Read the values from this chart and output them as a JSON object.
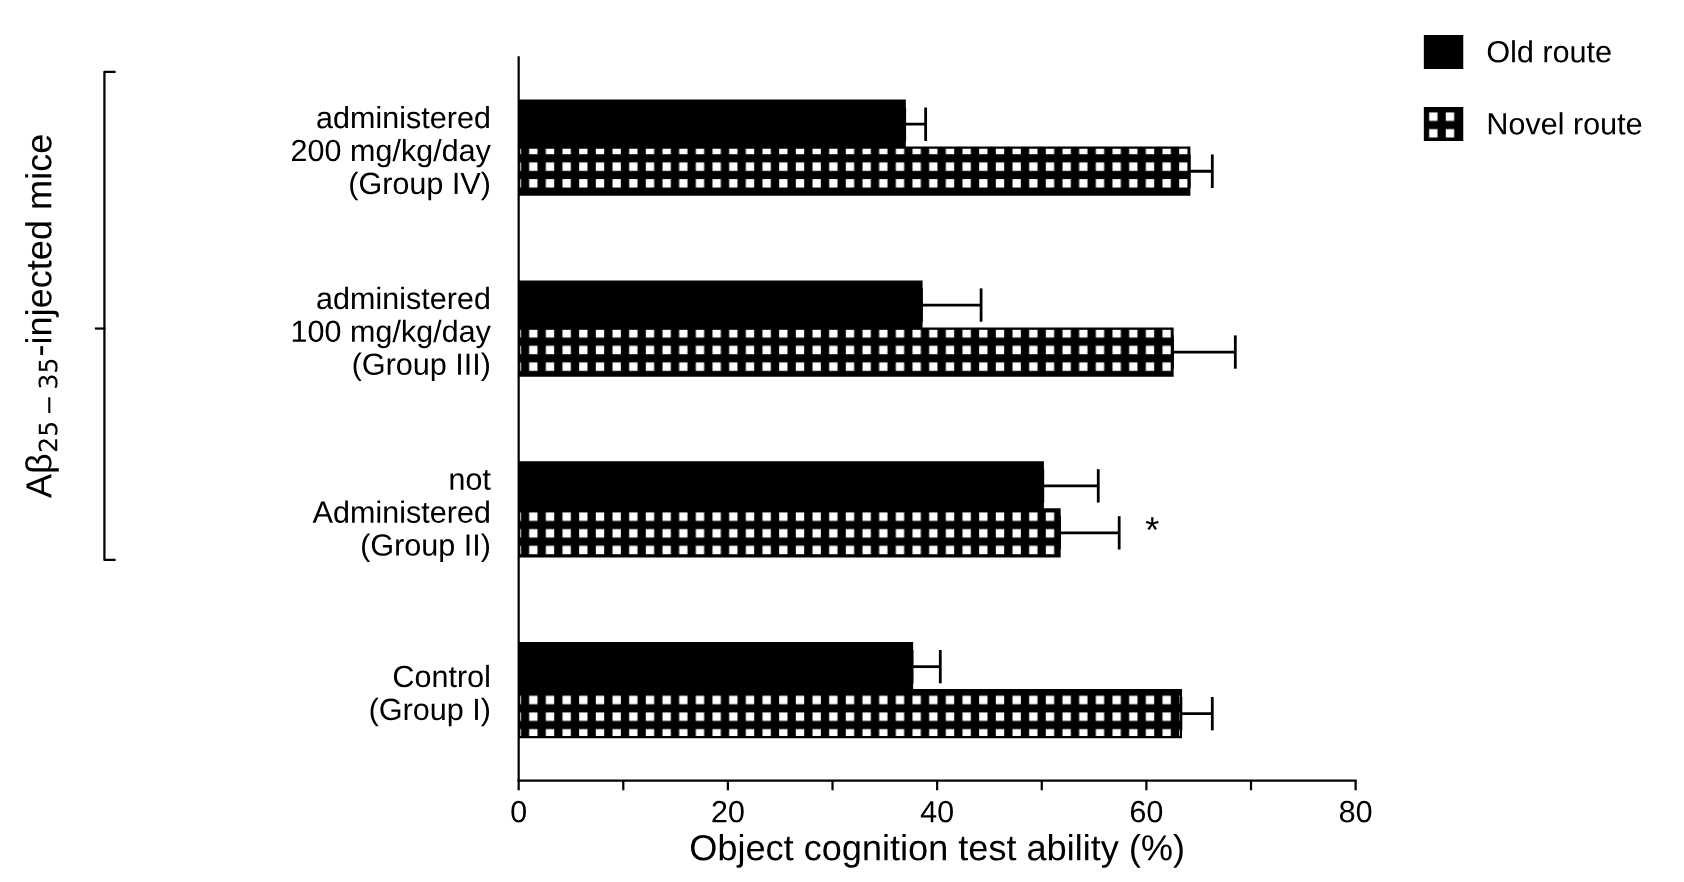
{
  "chart_data": {
    "type": "bar",
    "orientation": "horizontal",
    "categories": [
      "administered\n200 mg/kg/day\n(Group IV)",
      "administered\n100 mg/kg/day\n(Group III)",
      "not\nAdministered\n(Group II)",
      "Control\n(Group I)"
    ],
    "series": [
      {
        "name": "Old route",
        "color": "#000000",
        "values": [
          36.9,
          38.5,
          50.1,
          37.6
        ],
        "errors": [
          [
            36.9,
            38.9
          ],
          [
            38.5,
            44.2
          ],
          [
            50.1,
            55.4
          ],
          [
            37.6,
            40.3
          ]
        ]
      },
      {
        "name": "Novel route",
        "color": "#000000",
        "values": [
          64.1,
          62.5,
          51.7,
          63.3
        ],
        "errors": [
          [
            64.1,
            66.3
          ],
          [
            62.5,
            68.5
          ],
          [
            51.7,
            57.4
          ],
          [
            63.3,
            66.3
          ]
        ]
      }
    ],
    "xlabel": "Object cognition test ability (%)",
    "xlim": [
      0,
      80
    ],
    "xticks": [
      0,
      {
        "value": 10,
        "label": null
      },
      20,
      {
        "value": 30,
        "label": null
      },
      40,
      {
        "value": 50,
        "label": null
      },
      60,
      {
        "value": 70,
        "label": null
      },
      80
    ],
    "annotations": [
      "*",
      "Aβ$_{25−35}$-injected mice"
    ],
    "grid": false,
    "legend": "top right"
  }
}
